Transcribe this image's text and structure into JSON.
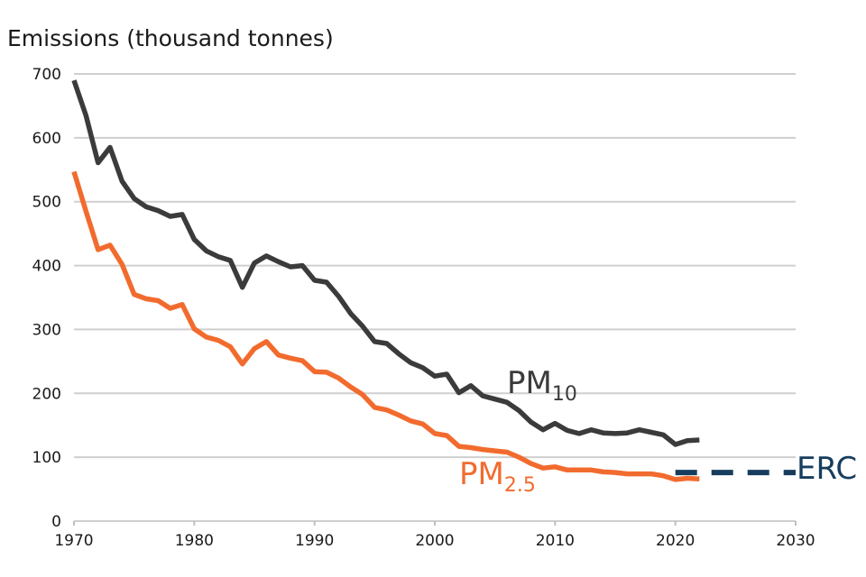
{
  "chart_data": {
    "type": "line",
    "ylabel": "Emissions (thousand tonnes)",
    "xlim": [
      1970,
      2030
    ],
    "ylim": [
      0,
      700
    ],
    "x_ticks": [
      1970,
      1980,
      1990,
      2000,
      2010,
      2020,
      2030
    ],
    "y_ticks": [
      0,
      100,
      200,
      300,
      400,
      500,
      600,
      700
    ],
    "grid": "horizontal",
    "legend": "none",
    "series": [
      {
        "name": "PM10",
        "label_main": "PM",
        "label_sub": "10",
        "color": "#3b3b3b",
        "x": [
          1970,
          1971,
          1972,
          1973,
          1974,
          1975,
          1976,
          1977,
          1978,
          1979,
          1980,
          1981,
          1982,
          1983,
          1984,
          1985,
          1986,
          1987,
          1988,
          1989,
          1990,
          1991,
          1992,
          1993,
          1994,
          1995,
          1996,
          1997,
          1998,
          1999,
          2000,
          2001,
          2002,
          2003,
          2004,
          2005,
          2006,
          2007,
          2008,
          2009,
          2010,
          2011,
          2012,
          2013,
          2014,
          2015,
          2016,
          2017,
          2018,
          2019,
          2020,
          2021,
          2022
        ],
        "y": [
          690,
          635,
          561,
          585,
          532,
          505,
          492,
          486,
          477,
          480,
          441,
          423,
          414,
          408,
          366,
          404,
          415,
          406,
          398,
          400,
          377,
          374,
          352,
          325,
          305,
          281,
          278,
          262,
          248,
          240,
          227,
          230,
          201,
          212,
          196,
          191,
          186,
          173,
          155,
          143,
          153,
          142,
          137,
          143,
          138,
          137,
          138,
          143,
          139,
          135,
          120,
          126,
          127
        ]
      },
      {
        "name": "PM2.5",
        "label_main": "PM",
        "label_sub": "2.5",
        "color": "#f26b2e",
        "x": [
          1970,
          1971,
          1972,
          1973,
          1974,
          1975,
          1976,
          1977,
          1978,
          1979,
          1980,
          1981,
          1982,
          1983,
          1984,
          1985,
          1986,
          1987,
          1988,
          1989,
          1990,
          1991,
          1992,
          1993,
          1994,
          1995,
          1996,
          1997,
          1998,
          1999,
          2000,
          2001,
          2002,
          2003,
          2004,
          2005,
          2006,
          2007,
          2008,
          2009,
          2010,
          2011,
          2012,
          2013,
          2014,
          2015,
          2016,
          2017,
          2018,
          2019,
          2020,
          2021,
          2022
        ],
        "y": [
          547,
          485,
          425,
          432,
          402,
          355,
          348,
          345,
          333,
          339,
          301,
          288,
          283,
          273,
          246,
          270,
          281,
          260,
          255,
          251,
          234,
          233,
          224,
          210,
          198,
          178,
          174,
          166,
          157,
          152,
          137,
          134,
          117,
          115,
          112,
          110,
          108,
          100,
          90,
          83,
          85,
          80,
          80,
          80,
          77,
          76,
          74,
          74,
          74,
          71,
          65,
          67,
          66
        ]
      },
      {
        "name": "ERC",
        "label_main": "ERC",
        "color": "#173d5e",
        "style": "dashed",
        "x": [
          2020,
          2030
        ],
        "y": [
          76,
          76
        ]
      }
    ]
  }
}
